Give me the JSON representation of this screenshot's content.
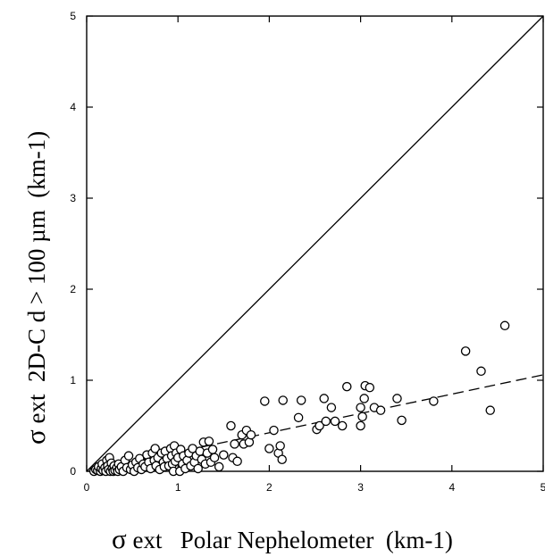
{
  "chart_data": {
    "type": "scatter",
    "title": "",
    "xlabel": {
      "symbol": "σ",
      "text": " ext   Polar Nephelometer  (km-1)"
    },
    "ylabel": {
      "symbol": "σ",
      "text": " ext  2D-C d > 100 µm  (km-1)"
    },
    "xlim": [
      0,
      5
    ],
    "ylim": [
      0,
      5
    ],
    "xticks": [
      "0",
      "1",
      "2",
      "3",
      "4",
      "5"
    ],
    "yticks": [
      "0",
      "1",
      "2",
      "3",
      "4",
      "5"
    ],
    "grid": false,
    "reference_lines": [
      {
        "name": "one-to-one",
        "style": "solid",
        "x": [
          0,
          5
        ],
        "y": [
          0,
          5
        ]
      },
      {
        "name": "linear-fit",
        "style": "dashed",
        "x": [
          0.05,
          5
        ],
        "y": [
          0.01,
          1.06
        ]
      }
    ],
    "points": [
      [
        0.08,
        0.0
      ],
      [
        0.1,
        0.02
      ],
      [
        0.12,
        0.01
      ],
      [
        0.13,
        0.05
      ],
      [
        0.15,
        0.0
      ],
      [
        0.16,
        0.03
      ],
      [
        0.17,
        0.08
      ],
      [
        0.18,
        0.01
      ],
      [
        0.2,
        0.04
      ],
      [
        0.21,
        0.0
      ],
      [
        0.22,
        0.12
      ],
      [
        0.23,
        0.06
      ],
      [
        0.24,
        0.02
      ],
      [
        0.25,
        0.15
      ],
      [
        0.26,
        0.0
      ],
      [
        0.27,
        0.09
      ],
      [
        0.28,
        0.03
      ],
      [
        0.29,
        0.0
      ],
      [
        0.3,
        0.06
      ],
      [
        0.31,
        0.01
      ],
      [
        0.33,
        0.04
      ],
      [
        0.34,
        0.0
      ],
      [
        0.35,
        0.08
      ],
      [
        0.36,
        0.02
      ],
      [
        0.38,
        0.05
      ],
      [
        0.4,
        0.0
      ],
      [
        0.42,
        0.12
      ],
      [
        0.44,
        0.04
      ],
      [
        0.46,
        0.17
      ],
      [
        0.48,
        0.02
      ],
      [
        0.5,
        0.07
      ],
      [
        0.52,
        0.0
      ],
      [
        0.54,
        0.1
      ],
      [
        0.56,
        0.04
      ],
      [
        0.58,
        0.14
      ],
      [
        0.6,
        0.02
      ],
      [
        0.62,
        0.08
      ],
      [
        0.64,
        0.05
      ],
      [
        0.66,
        0.18
      ],
      [
        0.68,
        0.1
      ],
      [
        0.7,
        0.03
      ],
      [
        0.72,
        0.2
      ],
      [
        0.74,
        0.12
      ],
      [
        0.75,
        0.25
      ],
      [
        0.76,
        0.06
      ],
      [
        0.78,
        0.15
      ],
      [
        0.8,
        0.02
      ],
      [
        0.82,
        0.2
      ],
      [
        0.84,
        0.1
      ],
      [
        0.85,
        0.05
      ],
      [
        0.86,
        0.22
      ],
      [
        0.88,
        0.14
      ],
      [
        0.9,
        0.06
      ],
      [
        0.92,
        0.25
      ],
      [
        0.93,
        0.17
      ],
      [
        0.94,
        0.08
      ],
      [
        0.95,
        0.0
      ],
      [
        0.96,
        0.28
      ],
      [
        0.97,
        0.11
      ],
      [
        0.98,
        0.2
      ],
      [
        1.0,
        0.15
      ],
      [
        1.02,
        0.0
      ],
      [
        1.03,
        0.24
      ],
      [
        1.05,
        0.08
      ],
      [
        1.06,
        0.17
      ],
      [
        1.08,
        0.03
      ],
      [
        1.1,
        0.12
      ],
      [
        1.12,
        0.2
      ],
      [
        1.14,
        0.06
      ],
      [
        1.16,
        0.25
      ],
      [
        1.18,
        0.1
      ],
      [
        1.2,
        0.17
      ],
      [
        1.22,
        0.03
      ],
      [
        1.24,
        0.22
      ],
      [
        1.26,
        0.13
      ],
      [
        1.28,
        0.32
      ],
      [
        1.3,
        0.08
      ],
      [
        1.32,
        0.2
      ],
      [
        1.34,
        0.33
      ],
      [
        1.36,
        0.1
      ],
      [
        1.38,
        0.24
      ],
      [
        1.4,
        0.15
      ],
      [
        1.45,
        0.05
      ],
      [
        1.5,
        0.18
      ],
      [
        1.58,
        0.5
      ],
      [
        1.6,
        0.15
      ],
      [
        1.62,
        0.3
      ],
      [
        1.65,
        0.11
      ],
      [
        1.7,
        0.4
      ],
      [
        1.72,
        0.3
      ],
      [
        1.75,
        0.45
      ],
      [
        1.78,
        0.32
      ],
      [
        1.8,
        0.4
      ],
      [
        1.95,
        0.77
      ],
      [
        2.0,
        0.25
      ],
      [
        2.05,
        0.45
      ],
      [
        2.1,
        0.2
      ],
      [
        2.12,
        0.28
      ],
      [
        2.14,
        0.13
      ],
      [
        2.15,
        0.78
      ],
      [
        2.32,
        0.59
      ],
      [
        2.35,
        0.78
      ],
      [
        2.52,
        0.46
      ],
      [
        2.55,
        0.5
      ],
      [
        2.6,
        0.8
      ],
      [
        2.62,
        0.55
      ],
      [
        2.68,
        0.7
      ],
      [
        2.72,
        0.55
      ],
      [
        2.8,
        0.5
      ],
      [
        2.85,
        0.93
      ],
      [
        3.0,
        0.5
      ],
      [
        3.0,
        0.7
      ],
      [
        3.02,
        0.6
      ],
      [
        3.04,
        0.8
      ],
      [
        3.05,
        0.94
      ],
      [
        3.1,
        0.92
      ],
      [
        3.15,
        0.7
      ],
      [
        3.22,
        0.67
      ],
      [
        3.4,
        0.8
      ],
      [
        3.45,
        0.56
      ],
      [
        3.8,
        0.77
      ],
      [
        4.15,
        1.32
      ],
      [
        4.32,
        1.1
      ],
      [
        4.42,
        0.67
      ],
      [
        4.58,
        1.6
      ]
    ]
  }
}
